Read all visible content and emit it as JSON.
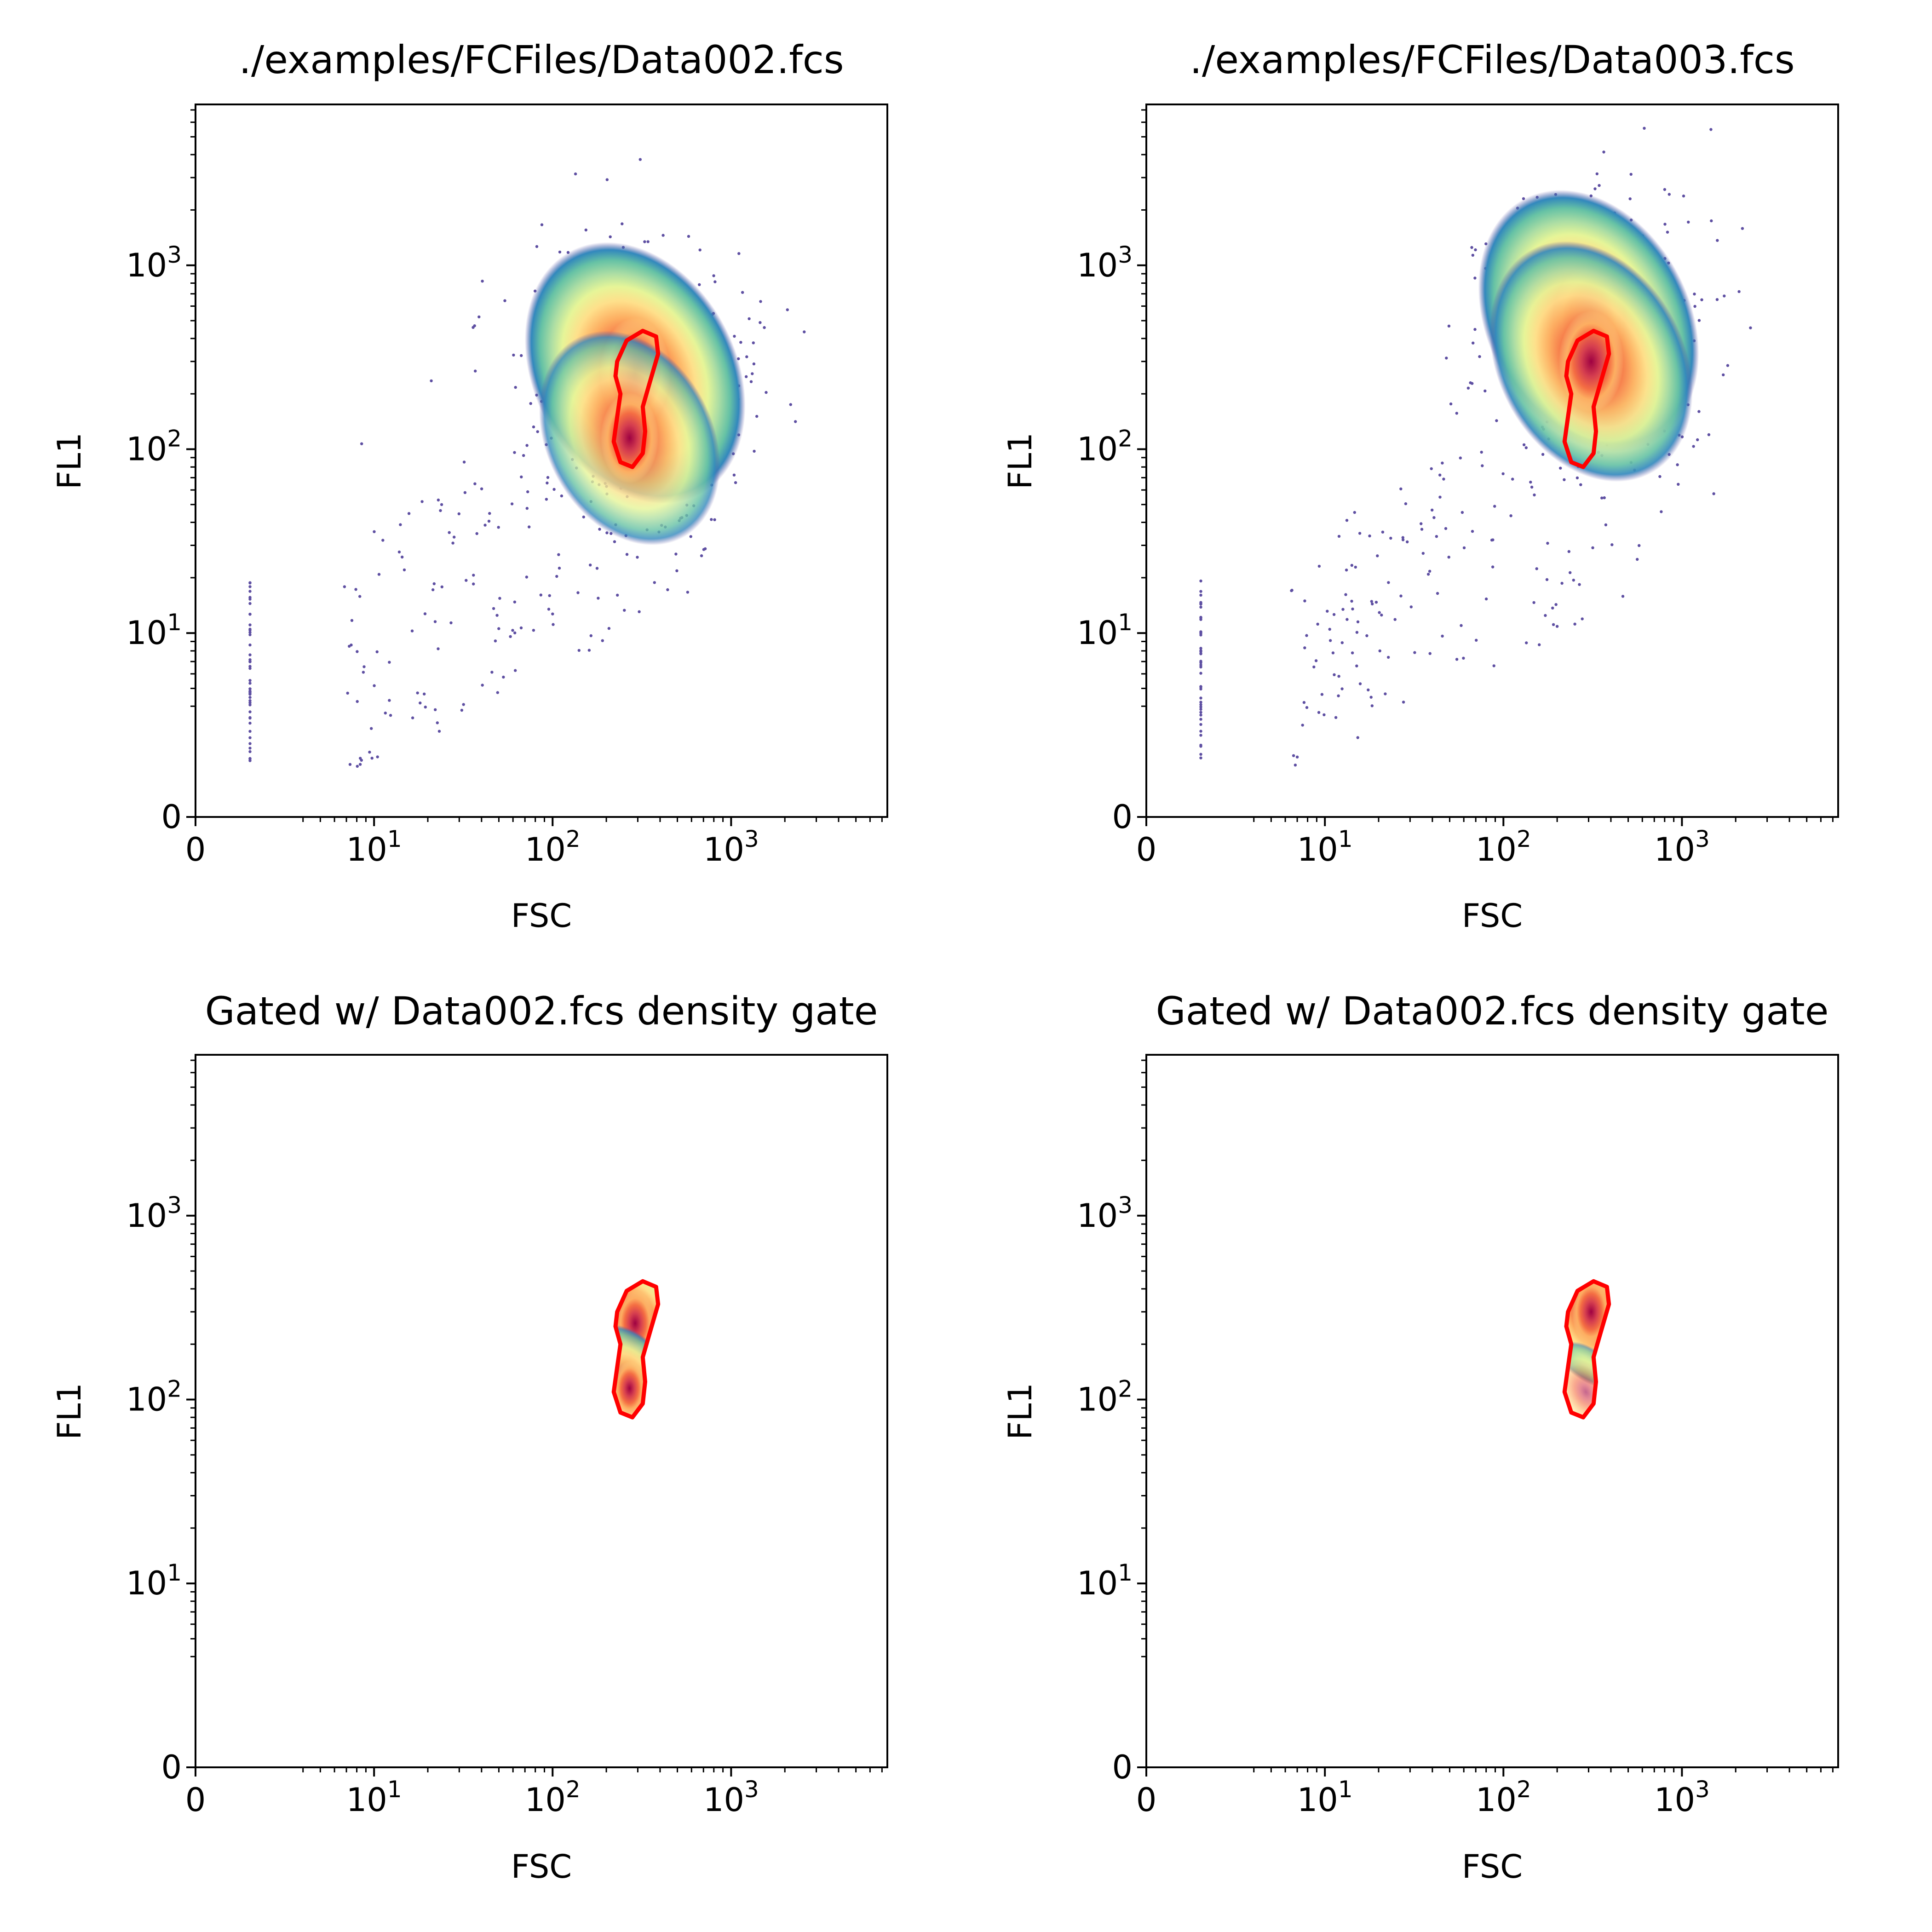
{
  "figure": {
    "layout": "2x2 grid"
  },
  "chart_data": [
    {
      "type": "scatter",
      "title": "./examples/FCFiles/Data002.fcs",
      "xlabel": "FSC",
      "ylabel": "FL1",
      "xscale": "symlog",
      "yscale": "symlog",
      "xlim": [
        0,
        7500
      ],
      "ylim": [
        0,
        7500
      ],
      "xticks": [
        0,
        10,
        100,
        1000
      ],
      "xticklabels": [
        "0",
        "10",
        "1",
        "10",
        "2",
        "10",
        "3"
      ],
      "yticks": [
        0,
        10,
        100,
        1000
      ],
      "colormap": "Spectral_r density",
      "points_description": "main dense population near FSC 300, FL1 250 with a secondary lobe near FL1 110; sparse scatter down to FL1 ~2; vertical column of points at FSC ~2",
      "density_centers": [
        {
          "x": 290,
          "y": 260,
          "weight": 1.0
        },
        {
          "x": 270,
          "y": 115,
          "weight": 0.55
        }
      ],
      "gate_contour": [
        [
          230,
          300
        ],
        [
          260,
          390
        ],
        [
          320,
          440
        ],
        [
          380,
          410
        ],
        [
          390,
          330
        ],
        [
          350,
          230
        ],
        [
          320,
          170
        ],
        [
          330,
          125
        ],
        [
          320,
          95
        ],
        [
          280,
          80
        ],
        [
          240,
          85
        ],
        [
          220,
          110
        ],
        [
          230,
          150
        ],
        [
          240,
          200
        ],
        [
          225,
          250
        ],
        [
          230,
          300
        ]
      ],
      "gate_color": "#ff0000"
    },
    {
      "type": "scatter",
      "title": "./examples/FCFiles/Data003.fcs",
      "xlabel": "FSC",
      "ylabel": "FL1",
      "xscale": "symlog",
      "yscale": "symlog",
      "xlim": [
        0,
        7500
      ],
      "ylim": [
        0,
        7500
      ],
      "xticks": [
        0,
        10,
        100,
        1000
      ],
      "xticklabels": [
        "0",
        "10",
        "1",
        "10",
        "2",
        "10",
        "3"
      ],
      "yticks": [
        0,
        10,
        100,
        1000
      ],
      "colormap": "Spectral_r density",
      "points_description": "main dense population near FSC 300, FL1 500 shifted upward relative to Data002; sparse scatter down to FL1 ~2; vertical column at FSC ~2",
      "density_centers": [
        {
          "x": 300,
          "y": 500,
          "weight": 1.0
        },
        {
          "x": 310,
          "y": 300,
          "weight": 0.8
        }
      ],
      "gate_contour": [
        [
          230,
          300
        ],
        [
          260,
          390
        ],
        [
          320,
          440
        ],
        [
          380,
          410
        ],
        [
          390,
          330
        ],
        [
          350,
          230
        ],
        [
          320,
          170
        ],
        [
          330,
          125
        ],
        [
          320,
          95
        ],
        [
          280,
          80
        ],
        [
          240,
          85
        ],
        [
          220,
          110
        ],
        [
          230,
          150
        ],
        [
          240,
          200
        ],
        [
          225,
          250
        ],
        [
          230,
          300
        ]
      ],
      "gate_color": "#ff0000"
    },
    {
      "type": "scatter",
      "title": "Gated w/ Data002.fcs density gate",
      "xlabel": "FSC",
      "ylabel": "FL1",
      "xscale": "symlog",
      "yscale": "symlog",
      "xlim": [
        0,
        7500
      ],
      "ylim": [
        0,
        7500
      ],
      "xticks": [
        0,
        10,
        100,
        1000
      ],
      "xticklabels": [
        "0",
        "10",
        "1",
        "10",
        "2",
        "10",
        "3"
      ],
      "yticks": [
        0,
        10,
        100,
        1000
      ],
      "colormap": "Spectral_r density",
      "points_description": "only Data002 events inside the gate",
      "density_centers": [
        {
          "x": 290,
          "y": 260,
          "weight": 1.0
        },
        {
          "x": 270,
          "y": 115,
          "weight": 0.55
        }
      ],
      "gate_contour": [
        [
          230,
          300
        ],
        [
          260,
          390
        ],
        [
          320,
          440
        ],
        [
          380,
          410
        ],
        [
          390,
          330
        ],
        [
          350,
          230
        ],
        [
          320,
          170
        ],
        [
          330,
          125
        ],
        [
          320,
          95
        ],
        [
          280,
          80
        ],
        [
          240,
          85
        ],
        [
          220,
          110
        ],
        [
          230,
          150
        ],
        [
          240,
          200
        ],
        [
          225,
          250
        ],
        [
          230,
          300
        ]
      ],
      "gate_color": "#ff0000"
    },
    {
      "type": "scatter",
      "title": "Gated w/ Data002.fcs density gate",
      "xlabel": "FSC",
      "ylabel": "FL1",
      "xscale": "symlog",
      "yscale": "symlog",
      "xlim": [
        0,
        7500
      ],
      "ylim": [
        0,
        7500
      ],
      "xticks": [
        0,
        10,
        100,
        1000
      ],
      "xticklabels": [
        "0",
        "10",
        "1",
        "10",
        "2",
        "10",
        "3"
      ],
      "yticks": [
        0,
        10,
        100,
        1000
      ],
      "colormap": "Spectral_r density",
      "points_description": "only Data003 events inside the gate; dense upper lobe, sparse lower lobe",
      "density_centers": [
        {
          "x": 310,
          "y": 300,
          "weight": 1.0
        },
        {
          "x": 290,
          "y": 110,
          "weight": 0.12
        }
      ],
      "gate_contour": [
        [
          230,
          300
        ],
        [
          260,
          390
        ],
        [
          320,
          440
        ],
        [
          380,
          410
        ],
        [
          390,
          330
        ],
        [
          350,
          230
        ],
        [
          320,
          170
        ],
        [
          330,
          125
        ],
        [
          320,
          95
        ],
        [
          280,
          80
        ],
        [
          240,
          85
        ],
        [
          220,
          110
        ],
        [
          230,
          150
        ],
        [
          240,
          200
        ],
        [
          225,
          250
        ],
        [
          230,
          300
        ]
      ],
      "gate_color": "#ff0000"
    }
  ]
}
